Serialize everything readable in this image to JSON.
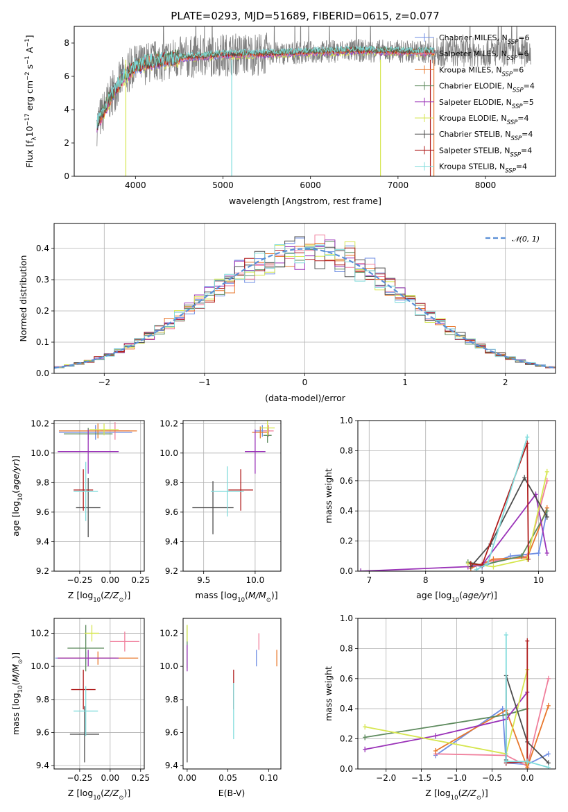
{
  "title": "PLATE=0293, MJD=51689, FIBERID=0615, z=0.077",
  "colors": {
    "chabrier_miles": "#6f8ee3",
    "salpeter_miles": "#f07f9c",
    "kroupa_miles": "#e8772c",
    "chabrier_elodie": "#5d8a5d",
    "salpeter_elodie": "#9a32b8",
    "kroupa_elodie": "#d6e64f",
    "chabrier_stelib": "#4d4d4d",
    "salpeter_stelib": "#b01d1d",
    "kroupa_stelib": "#80dcdc",
    "normal": "#5a8fd6"
  },
  "chart_data": [
    {
      "id": "spectrum",
      "type": "line",
      "xlabel": "wavelength [Angstrom, rest frame]",
      "ylabel": "Flux [f$_\\lambda$10$^{-17}$ erg cm$^{-2}$ s$^{-1}$ A$^{-1}$]",
      "xlim": [
        3300,
        8800
      ],
      "ylim": [
        0,
        9
      ],
      "xticks": [
        "4000",
        "5000",
        "6000",
        "7000",
        "8000"
      ],
      "yticks": [
        "0",
        "2",
        "4",
        "6",
        "8"
      ],
      "legend": [
        {
          "name": "Chabrier MILES, N",
          "sub": "SSP",
          "tail": "=6"
        },
        {
          "name": "Salpeter MILES, N",
          "sub": "SSP",
          "tail": "=6"
        },
        {
          "name": "Kroupa MILES, N",
          "sub": "SSP",
          "tail": "=6"
        },
        {
          "name": "Chabrier ELODIE, N",
          "sub": "SSP",
          "tail": "=4"
        },
        {
          "name": "Salpeter ELODIE, N",
          "sub": "SSP",
          "tail": "=5"
        },
        {
          "name": "Kroupa ELODIE, N",
          "sub": "SSP",
          "tail": "=4"
        },
        {
          "name": "Chabrier STELIB, N",
          "sub": "SSP",
          "tail": "=4"
        },
        {
          "name": "Salpeter STELIB, N",
          "sub": "SSP",
          "tail": "=4"
        },
        {
          "name": "Kroupa STELIB, N",
          "sub": "SSP",
          "tail": "=4"
        }
      ],
      "legend_placement": "upper right",
      "grid": false,
      "continuum": {
        "x": [
          3550,
          3700,
          3850,
          4000,
          4200,
          4500,
          5000,
          5500,
          6000,
          6500,
          7000,
          7400
        ],
        "y": [
          3.0,
          4.6,
          5.9,
          6.6,
          6.9,
          7.1,
          7.3,
          7.35,
          7.45,
          7.55,
          7.5,
          7.45
        ]
      },
      "data_range": [
        3560,
        8520
      ]
    },
    {
      "id": "residuals",
      "type": "histogram",
      "xlabel": "(data-model)/error",
      "ylabel": "Normed distribution",
      "xlim": [
        -2.5,
        2.5
      ],
      "ylim": [
        0,
        0.48
      ],
      "xticks": [
        "−2",
        "−1",
        "0",
        "1",
        "2"
      ],
      "yticks": [
        "0.0",
        "0.1",
        "0.2",
        "0.3",
        "0.4"
      ],
      "grid": true,
      "legend": [
        {
          "name": "$\\mathcal{N}(0,1)$"
        }
      ],
      "legend_placement": "upper right",
      "bin_width": 0.1
    },
    {
      "id": "age_vs_Z",
      "type": "errorbar",
      "xlabel": "Z [log$_{10}$(Z/Z$_\\odot$)]",
      "ylabel": "age  [log$_{10}$(age/yr)]",
      "xlim": [
        -0.46,
        0.28
      ],
      "ylim": [
        9.2,
        10.22
      ],
      "xticks": [
        "−0.25",
        "0.00",
        "0.25"
      ],
      "yticks": [
        "9.2",
        "9.4",
        "9.6",
        "9.8",
        "10.0",
        "10.2"
      ],
      "grid": true,
      "points": [
        {
          "c": "chabrier_miles",
          "x": -0.12,
          "xe": 0.3,
          "y": 10.14,
          "ye": 0.05
        },
        {
          "c": "salpeter_miles",
          "x": 0.04,
          "xe": 0.12,
          "y": 10.15,
          "ye": 0.06
        },
        {
          "c": "kroupa_miles",
          "x": -0.1,
          "xe": 0.32,
          "y": 10.15,
          "ye": 0.05
        },
        {
          "c": "chabrier_elodie",
          "x": -0.18,
          "xe": 0.2,
          "y": 10.13,
          "ye": 0.04
        },
        {
          "c": "salpeter_elodie",
          "x": -0.18,
          "xe": 0.25,
          "y": 10.01,
          "ye": 0.15
        },
        {
          "c": "kroupa_elodie",
          "x": -0.05,
          "xe": 0.12,
          "y": 10.16,
          "ye": 0.04
        },
        {
          "c": "chabrier_stelib",
          "x": -0.18,
          "xe": 0.1,
          "y": 9.63,
          "ye": 0.2
        },
        {
          "c": "salpeter_stelib",
          "x": -0.22,
          "xe": 0.08,
          "y": 9.75,
          "ye": 0.14
        },
        {
          "c": "kroupa_stelib",
          "x": -0.2,
          "xe": 0.1,
          "y": 9.74,
          "ye": 0.2
        }
      ]
    },
    {
      "id": "age_vs_mass",
      "type": "errorbar",
      "xlabel": "mass [log$_{10}$(M/M$_\\odot$)]",
      "ylabel": "",
      "xlim": [
        9.3,
        10.25
      ],
      "ylim": [
        9.2,
        10.22
      ],
      "xticks": [
        "9.5",
        "10.0"
      ],
      "yticks": [
        "9.2",
        "9.4",
        "9.6",
        "9.8",
        "10.0",
        "10.2"
      ],
      "grid": true,
      "points": [
        {
          "c": "chabrier_miles",
          "x": 10.07,
          "xe": 0.07,
          "y": 10.15,
          "ye": 0.04
        },
        {
          "c": "salpeter_miles",
          "x": 10.13,
          "xe": 0.05,
          "y": 10.15,
          "ye": 0.04
        },
        {
          "c": "kroupa_miles",
          "x": 10.05,
          "xe": 0.08,
          "y": 10.14,
          "ye": 0.04
        },
        {
          "c": "chabrier_elodie",
          "x": 10.12,
          "xe": 0.04,
          "y": 10.12,
          "ye": 0.05
        },
        {
          "c": "salpeter_elodie",
          "x": 10.0,
          "xe": 0.1,
          "y": 10.01,
          "ye": 0.15
        },
        {
          "c": "kroupa_elodie",
          "x": 10.12,
          "xe": 0.07,
          "y": 10.17,
          "ye": 0.05
        },
        {
          "c": "chabrier_stelib",
          "x": 9.59,
          "xe": 0.2,
          "y": 9.63,
          "ye": 0.18
        },
        {
          "c": "salpeter_stelib",
          "x": 9.86,
          "xe": 0.12,
          "y": 9.75,
          "ye": 0.14
        },
        {
          "c": "kroupa_stelib",
          "x": 9.73,
          "xe": 0.16,
          "y": 9.74,
          "ye": 0.17
        }
      ]
    },
    {
      "id": "weight_vs_age",
      "type": "line",
      "xlabel": "age  [log$_{10}$(age/yr)]",
      "ylabel": "mass weight",
      "xlim": [
        6.8,
        10.3
      ],
      "ylim": [
        0,
        1
      ],
      "xticks": [
        "7",
        "8",
        "9",
        "10"
      ],
      "yticks": [
        "0.0",
        "0.2",
        "0.4",
        "0.6",
        "0.8",
        "1.0"
      ],
      "grid": true,
      "series": [
        {
          "c": "chabrier_miles",
          "x": [
            8.75,
            9.0,
            9.5,
            10.0,
            10.15
          ],
          "y": [
            0.05,
            0.03,
            0.1,
            0.12,
            0.4
          ]
        },
        {
          "c": "salpeter_miles",
          "x": [
            8.8,
            9.2,
            9.8,
            10.15
          ],
          "y": [
            0.03,
            0.07,
            0.1,
            0.6
          ]
        },
        {
          "c": "kroupa_miles",
          "x": [
            8.8,
            9.2,
            9.8,
            10.15
          ],
          "y": [
            0.02,
            0.08,
            0.09,
            0.42
          ]
        },
        {
          "c": "chabrier_elodie",
          "x": [
            8.75,
            9.0,
            9.7,
            10.15
          ],
          "y": [
            0.06,
            0.04,
            0.1,
            0.4
          ]
        },
        {
          "c": "salpeter_elodie",
          "x": [
            6.85,
            8.75,
            9.0,
            9.95,
            10.15
          ],
          "y": [
            0.0,
            0.03,
            0.04,
            0.51,
            0.12
          ]
        },
        {
          "c": "kroupa_elodie",
          "x": [
            8.75,
            9.2,
            9.8,
            10.15
          ],
          "y": [
            0.05,
            0.03,
            0.08,
            0.66
          ]
        },
        {
          "c": "chabrier_stelib",
          "x": [
            8.8,
            9.15,
            9.75,
            10.15
          ],
          "y": [
            0.03,
            0.18,
            0.62,
            0.36
          ]
        },
        {
          "c": "salpeter_stelib",
          "x": [
            8.8,
            9.0,
            9.8,
            9.82
          ],
          "y": [
            0.05,
            0.04,
            0.85,
            0.08
          ]
        },
        {
          "c": "kroupa_stelib",
          "x": [
            8.9,
            9.1,
            9.8
          ],
          "y": [
            0.01,
            0.05,
            0.89
          ]
        }
      ]
    },
    {
      "id": "mass_vs_Z",
      "type": "errorbar",
      "xlabel": "Z [log$_{10}$(Z/Z$_\\odot$)]",
      "ylabel": "mass [log$_{10}$(M/M$_\\odot$)]",
      "xlim": [
        -0.46,
        0.28
      ],
      "ylim": [
        9.38,
        10.29
      ],
      "xticks": [
        "−0.25",
        "0.00",
        "0.25"
      ],
      "yticks": [
        "9.4",
        "9.6",
        "9.8",
        "10.0",
        "10.2"
      ],
      "grid": true,
      "points": [
        {
          "c": "chabrier_miles",
          "x": -0.2,
          "xe": 0.25,
          "y": 10.05,
          "ye": 0.04
        },
        {
          "c": "salpeter_miles",
          "x": 0.12,
          "xe": 0.12,
          "y": 10.15,
          "ye": 0.06
        },
        {
          "c": "kroupa_miles",
          "x": -0.1,
          "xe": 0.33,
          "y": 10.05,
          "ye": 0.04
        },
        {
          "c": "chabrier_elodie",
          "x": -0.2,
          "xe": 0.15,
          "y": 10.11,
          "ye": 0.14
        },
        {
          "c": "salpeter_elodie",
          "x": -0.18,
          "xe": 0.25,
          "y": 10.05,
          "ye": 0.05
        },
        {
          "c": "kroupa_elodie",
          "x": -0.15,
          "xe": 0.06,
          "y": 10.2,
          "ye": 0.05
        },
        {
          "c": "chabrier_stelib",
          "x": -0.21,
          "xe": 0.12,
          "y": 9.59,
          "ye": 0.17
        },
        {
          "c": "salpeter_stelib",
          "x": -0.22,
          "xe": 0.1,
          "y": 9.86,
          "ye": 0.12
        },
        {
          "c": "kroupa_stelib",
          "x": -0.2,
          "xe": 0.1,
          "y": 9.73,
          "ye": 0.15
        }
      ]
    },
    {
      "id": "mass_vs_ebv",
      "type": "errorbar",
      "xlabel": "E(B-V)",
      "ylabel": "",
      "xlim": [
        -0.005,
        0.115
      ],
      "ylim": [
        9.38,
        10.29
      ],
      "xticks": [
        "0.00",
        "0.05",
        "0.10"
      ],
      "yticks": [
        "9.4",
        "9.6",
        "9.8",
        "10.0",
        "10.2"
      ],
      "grid": false,
      "points": [
        {
          "c": "chabrier_miles",
          "x": 0.085,
          "xe": 0,
          "y": 10.05,
          "ye": 0.05
        },
        {
          "c": "salpeter_miles",
          "x": 0.088,
          "xe": 0,
          "y": 10.15,
          "ye": 0.05
        },
        {
          "c": "kroupa_miles",
          "x": 0.11,
          "xe": 0,
          "y": 10.05,
          "ye": 0.05
        },
        {
          "c": "chabrier_elodie",
          "x": 0.0,
          "xe": 0,
          "y": 10.12,
          "ye": 0.13
        },
        {
          "c": "salpeter_elodie",
          "x": 0.0,
          "xe": 0,
          "y": 10.05,
          "ye": 0.08
        },
        {
          "c": "kroupa_elodie",
          "x": 0.0,
          "xe": 0,
          "y": 10.2,
          "ye": 0.05
        },
        {
          "c": "chabrier_stelib",
          "x": 0.0,
          "xe": 0,
          "y": 9.59,
          "ye": 0.17
        },
        {
          "c": "salpeter_stelib",
          "x": 0.057,
          "xe": 0,
          "y": 9.86,
          "ye": 0.12
        },
        {
          "c": "kroupa_stelib",
          "x": 0.057,
          "xe": 0,
          "y": 9.73,
          "ye": 0.17
        }
      ]
    },
    {
      "id": "weight_vs_Z",
      "type": "line",
      "xlabel": "Z [log$_{10}$(Z/Z$_\\odot$)]",
      "ylabel": "mass weight",
      "xlim": [
        -2.4,
        0.4
      ],
      "ylim": [
        0,
        1
      ],
      "xticks": [
        "−2.0",
        "−1.5",
        "−1.0",
        "−0.5",
        "0.0"
      ],
      "yticks": [
        "0.0",
        "0.2",
        "0.4",
        "0.6",
        "0.8",
        "1.0"
      ],
      "grid": true,
      "series": [
        {
          "c": "chabrier_miles",
          "x": [
            -1.3,
            -0.35,
            -0.3,
            0.0,
            0.3
          ],
          "y": [
            0.09,
            0.4,
            0.04,
            0.03,
            0.1
          ]
        },
        {
          "c": "salpeter_miles",
          "x": [
            -1.3,
            -0.3,
            0.0,
            0.3
          ],
          "y": [
            0.1,
            0.09,
            0.02,
            0.6
          ]
        },
        {
          "c": "kroupa_miles",
          "x": [
            -1.3,
            -0.3,
            0.0,
            0.3
          ],
          "y": [
            0.12,
            0.39,
            0.01,
            0.42
          ]
        },
        {
          "c": "chabrier_elodie",
          "x": [
            -2.3,
            -0.3,
            0.0,
            0.0
          ],
          "y": [
            0.21,
            0.36,
            0.4,
            0.05
          ]
        },
        {
          "c": "salpeter_elodie",
          "x": [
            -2.3,
            -1.3,
            -0.3,
            0.0,
            0.0
          ],
          "y": [
            0.13,
            0.22,
            0.33,
            0.51,
            0.04
          ]
        },
        {
          "c": "kroupa_elodie",
          "x": [
            -2.3,
            -0.3,
            0.0,
            0.0
          ],
          "y": [
            0.28,
            0.1,
            0.66,
            0.04
          ]
        },
        {
          "c": "chabrier_stelib",
          "x": [
            -0.3,
            -0.3,
            0.0,
            0.3
          ],
          "y": [
            0.06,
            0.62,
            0.18,
            0.04
          ]
        },
        {
          "c": "salpeter_stelib",
          "x": [
            -0.3,
            0.0,
            0.0
          ],
          "y": [
            0.04,
            0.05,
            0.85
          ]
        },
        {
          "c": "kroupa_stelib",
          "x": [
            -0.3,
            -0.3,
            0.0,
            0.3
          ],
          "y": [
            0.89,
            0.05,
            0.05,
            0.01
          ]
        }
      ]
    }
  ]
}
